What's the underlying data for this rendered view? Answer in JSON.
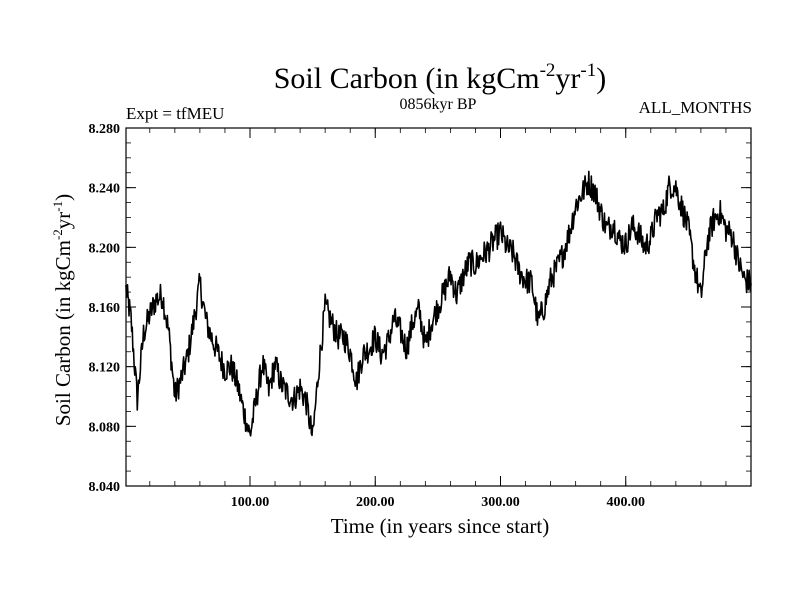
{
  "chart_data": {
    "type": "line",
    "title": {
      "main": "Soil Carbon (in kgCm",
      "sup1": "-2",
      "mid": "yr",
      "sup2": "-1",
      "end": ")"
    },
    "subtitle_left": "Expt = tfMEU",
    "subtitle_center": "0856kyr BP",
    "subtitle_right": "ALL_MONTHS",
    "xlabel": "Time (in years since start)",
    "ylabel": {
      "main": "Soil Carbon (in kgCm",
      "sup1": "-2",
      "mid": "yr",
      "sup2": "-1",
      "end": ")"
    },
    "xlim": [
      1,
      500
    ],
    "ylim": [
      8.04,
      8.28
    ],
    "xticks": [
      100,
      200,
      300,
      400
    ],
    "xtick_labels": [
      "100.00",
      "200.00",
      "300.00",
      "400.00"
    ],
    "yticks": [
      8.04,
      8.08,
      8.12,
      8.16,
      8.2,
      8.24,
      8.28
    ],
    "ytick_labels": [
      "8.040",
      "8.080",
      "8.120",
      "8.160",
      "8.200",
      "8.240",
      "8.280"
    ],
    "line_color": "#000000",
    "series": [
      {
        "name": "Soil Carbon",
        "x": [
          1,
          5,
          10,
          15,
          20,
          25,
          30,
          35,
          40,
          45,
          50,
          55,
          60,
          65,
          70,
          75,
          80,
          85,
          90,
          95,
          100,
          105,
          110,
          115,
          120,
          125,
          130,
          135,
          140,
          145,
          150,
          155,
          160,
          165,
          170,
          175,
          180,
          185,
          190,
          195,
          200,
          205,
          210,
          215,
          220,
          225,
          230,
          235,
          240,
          245,
          250,
          255,
          260,
          265,
          270,
          275,
          280,
          285,
          290,
          295,
          300,
          305,
          310,
          315,
          320,
          325,
          330,
          335,
          340,
          345,
          350,
          355,
          360,
          365,
          370,
          375,
          380,
          385,
          390,
          395,
          400,
          405,
          410,
          415,
          420,
          425,
          430,
          435,
          440,
          445,
          450,
          455,
          460,
          465,
          470,
          475,
          480,
          485,
          490,
          495,
          500
        ],
        "y": [
          8.172,
          8.152,
          8.098,
          8.142,
          8.155,
          8.165,
          8.168,
          8.144,
          8.1,
          8.112,
          8.126,
          8.15,
          8.176,
          8.15,
          8.138,
          8.128,
          8.118,
          8.12,
          8.108,
          8.09,
          8.074,
          8.098,
          8.122,
          8.104,
          8.122,
          8.108,
          8.102,
          8.098,
          8.106,
          8.096,
          8.072,
          8.12,
          8.16,
          8.15,
          8.14,
          8.14,
          8.13,
          8.11,
          8.128,
          8.132,
          8.14,
          8.128,
          8.136,
          8.152,
          8.144,
          8.132,
          8.15,
          8.158,
          8.134,
          8.15,
          8.16,
          8.17,
          8.182,
          8.168,
          8.18,
          8.19,
          8.188,
          8.194,
          8.198,
          8.205,
          8.21,
          8.2,
          8.196,
          8.184,
          8.178,
          8.176,
          8.15,
          8.16,
          8.178,
          8.186,
          8.196,
          8.21,
          8.228,
          8.236,
          8.244,
          8.238,
          8.224,
          8.212,
          8.216,
          8.205,
          8.202,
          8.214,
          8.21,
          8.2,
          8.206,
          8.222,
          8.224,
          8.242,
          8.24,
          8.226,
          8.212,
          8.186,
          8.166,
          8.204,
          8.218,
          8.224,
          8.212,
          8.208,
          8.19,
          8.178,
          8.176
        ]
      }
    ]
  }
}
